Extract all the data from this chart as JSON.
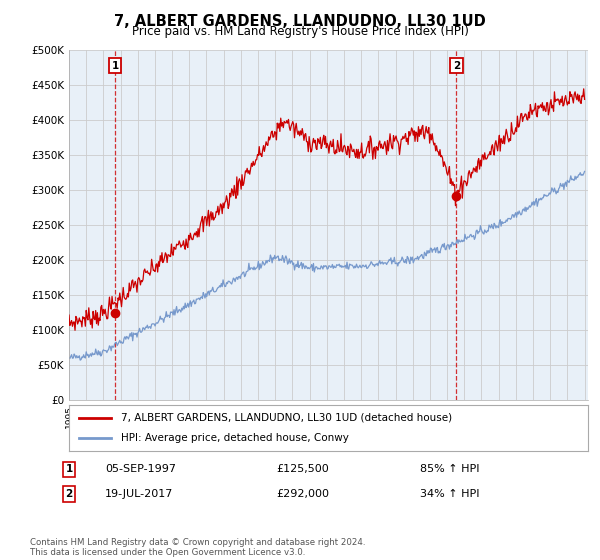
{
  "title": "7, ALBERT GARDENS, LLANDUDNO, LL30 1UD",
  "subtitle": "Price paid vs. HM Land Registry's House Price Index (HPI)",
  "ylabel_ticks": [
    "£0",
    "£50K",
    "£100K",
    "£150K",
    "£200K",
    "£250K",
    "£300K",
    "£350K",
    "£400K",
    "£450K",
    "£500K"
  ],
  "ylim": [
    0,
    500000
  ],
  "xlim_start": 1995.0,
  "xlim_end": 2025.2,
  "sale1_x": 1997.68,
  "sale1_y": 125500,
  "sale1_label": "1",
  "sale2_x": 2017.54,
  "sale2_y": 292000,
  "sale2_label": "2",
  "red_line_color": "#cc0000",
  "blue_line_color": "#7799cc",
  "vline_color": "#cc0000",
  "grid_color": "#cccccc",
  "background_color": "#ffffff",
  "plot_bg_color": "#e8f0f8",
  "legend_label_red": "7, ALBERT GARDENS, LLANDUDNO, LL30 1UD (detached house)",
  "legend_label_blue": "HPI: Average price, detached house, Conwy",
  "annotation1_date": "05-SEP-1997",
  "annotation1_price": "£125,500",
  "annotation1_hpi": "85% ↑ HPI",
  "annotation2_date": "19-JUL-2017",
  "annotation2_price": "£292,000",
  "annotation2_hpi": "34% ↑ HPI",
  "footer": "Contains HM Land Registry data © Crown copyright and database right 2024.\nThis data is licensed under the Open Government Licence v3.0."
}
